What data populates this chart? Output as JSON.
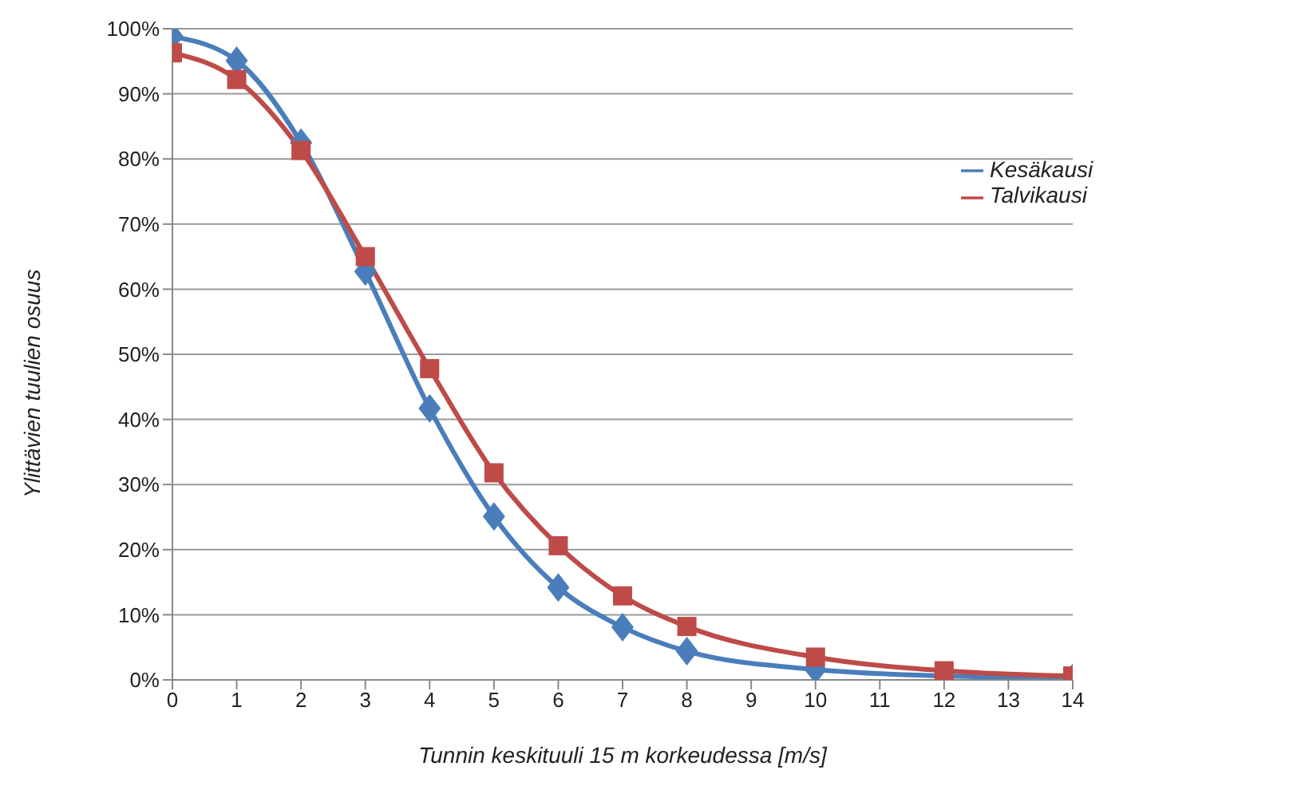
{
  "chart_data": {
    "type": "line",
    "xlabel": "Tunnin keskituuli 15 m korkeudessa [m/s]",
    "ylabel": "Ylittävien tuulien osuus",
    "x": [
      0,
      1,
      2,
      3,
      4,
      5,
      6,
      7,
      8,
      10,
      12,
      14
    ],
    "series": [
      {
        "name": "Kesäkausi",
        "color": "#4a7ebb",
        "marker": "diamond",
        "values": [
          98.8,
          95.1,
          82.5,
          62.7,
          41.7,
          25.1,
          14.2,
          8.1,
          4.4,
          1.6,
          0.6,
          0.3
        ]
      },
      {
        "name": "Talvikausi",
        "color": "#be4b48",
        "marker": "square",
        "values": [
          96.3,
          92.2,
          81.3,
          65,
          47.8,
          31.8,
          20.6,
          12.9,
          8.2,
          3.5,
          1.4,
          0.6
        ]
      }
    ],
    "xlim": [
      0,
      14
    ],
    "xticks": [
      0,
      1,
      2,
      3,
      4,
      5,
      6,
      7,
      8,
      9,
      10,
      11,
      12,
      13,
      14
    ],
    "ylim": [
      0,
      100
    ],
    "yticks": [
      {
        "value": 0,
        "label": "0%"
      },
      {
        "value": 10,
        "label": "10%"
      },
      {
        "value": 20,
        "label": "20%"
      },
      {
        "value": 30,
        "label": "30%"
      },
      {
        "value": 40,
        "label": "40%"
      },
      {
        "value": 50,
        "label": "50%"
      },
      {
        "value": 60,
        "label": "60%"
      },
      {
        "value": 70,
        "label": "70%"
      },
      {
        "value": 80,
        "label": "80%"
      },
      {
        "value": 90,
        "label": "90%"
      },
      {
        "value": 100,
        "label": "100%"
      }
    ],
    "grid": "y",
    "legend": "top right",
    "line_style": "solid"
  }
}
